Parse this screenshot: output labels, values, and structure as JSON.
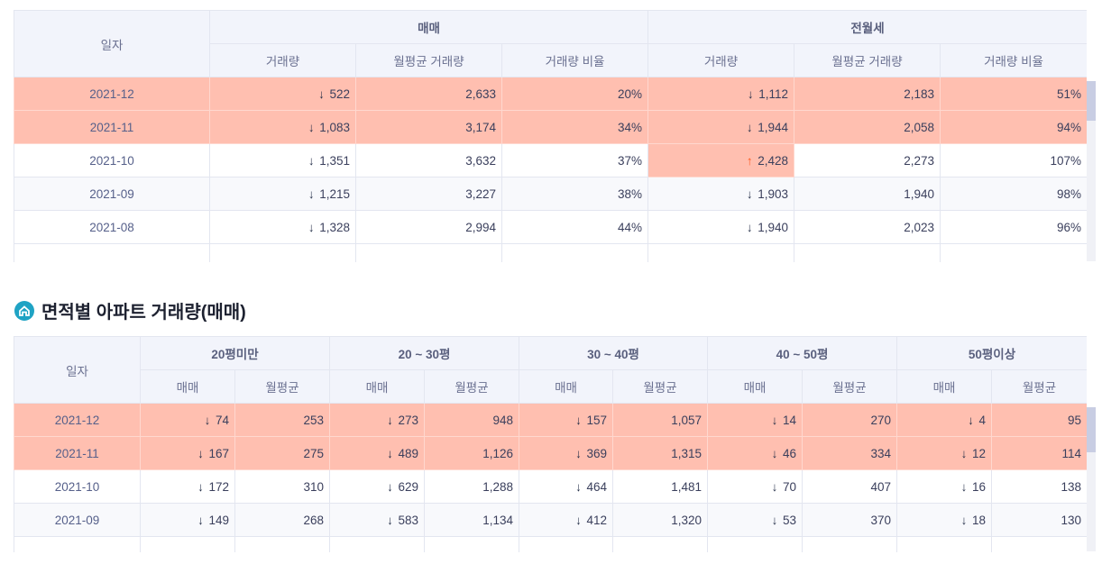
{
  "table1": {
    "header": {
      "date": "일자",
      "group_sale": "매매",
      "group_rent": "전월세",
      "volume": "거래량",
      "monthly_avg": "월평균 거래량",
      "ratio": "거래량 비율"
    },
    "rows": [
      {
        "date": "2021-12",
        "s_vol": "522",
        "s_dir": "down",
        "s_avg": "2,633",
        "s_ratio": "20%",
        "r_vol": "1,112",
        "r_dir": "down",
        "r_avg": "2,183",
        "r_ratio": "51%"
      },
      {
        "date": "2021-11",
        "s_vol": "1,083",
        "s_dir": "down",
        "s_avg": "3,174",
        "s_ratio": "34%",
        "r_vol": "1,944",
        "r_dir": "down",
        "r_avg": "2,058",
        "r_ratio": "94%"
      },
      {
        "date": "2021-10",
        "s_vol": "1,351",
        "s_dir": "down",
        "s_avg": "3,632",
        "s_ratio": "37%",
        "r_vol": "2,428",
        "r_dir": "up",
        "r_avg": "2,273",
        "r_ratio": "107%"
      },
      {
        "date": "2021-09",
        "s_vol": "1,215",
        "s_dir": "down",
        "s_avg": "3,227",
        "s_ratio": "38%",
        "r_vol": "1,903",
        "r_dir": "down",
        "r_avg": "1,940",
        "r_ratio": "98%"
      },
      {
        "date": "2021-08",
        "s_vol": "1,328",
        "s_dir": "down",
        "s_avg": "2,994",
        "s_ratio": "44%",
        "r_vol": "1,940",
        "r_dir": "down",
        "r_avg": "2,023",
        "r_ratio": "96%"
      }
    ]
  },
  "section2_title": "면적별 아파트 거래량(매매)",
  "table2": {
    "header": {
      "date": "일자",
      "groups": [
        "20평미만",
        "20 ~ 30평",
        "30 ~ 40평",
        "40 ~ 50평",
        "50평이상"
      ],
      "sale": "매매",
      "monthly_avg": "월평균"
    },
    "rows": [
      {
        "date": "2021-12",
        "cells": [
          [
            "74",
            "253"
          ],
          [
            "273",
            "948"
          ],
          [
            "157",
            "1,057"
          ],
          [
            "14",
            "270"
          ],
          [
            "4",
            "95"
          ]
        ]
      },
      {
        "date": "2021-11",
        "cells": [
          [
            "167",
            "275"
          ],
          [
            "489",
            "1,126"
          ],
          [
            "369",
            "1,315"
          ],
          [
            "46",
            "334"
          ],
          [
            "12",
            "114"
          ]
        ]
      },
      {
        "date": "2021-10",
        "cells": [
          [
            "172",
            "310"
          ],
          [
            "629",
            "1,288"
          ],
          [
            "464",
            "1,481"
          ],
          [
            "70",
            "407"
          ],
          [
            "16",
            "138"
          ]
        ]
      },
      {
        "date": "2021-09",
        "cells": [
          [
            "149",
            "268"
          ],
          [
            "583",
            "1,134"
          ],
          [
            "412",
            "1,320"
          ],
          [
            "53",
            "370"
          ],
          [
            "18",
            "130"
          ]
        ]
      }
    ]
  },
  "arrow_glyphs": {
    "down": "↓",
    "up": "↑"
  },
  "colors": {
    "highlight": "#ffbfb0",
    "header_bg": "#f2f4fb",
    "accent_icon": "#1fa3c4",
    "up_arrow": "#ff5a1f"
  }
}
